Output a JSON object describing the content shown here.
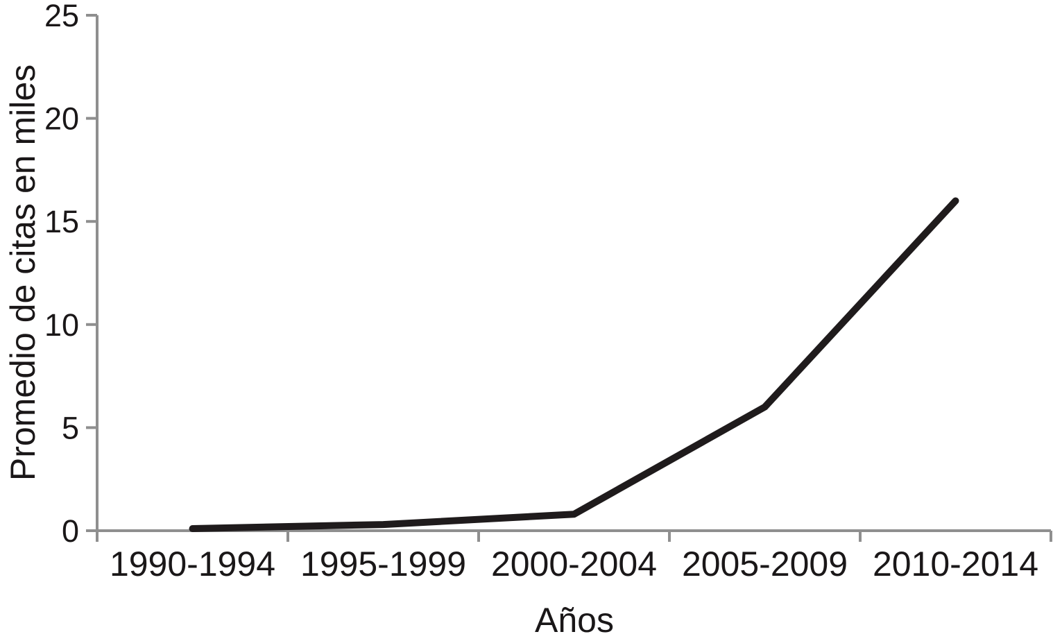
{
  "figure": {
    "background": "#ffffff"
  },
  "chart_data": {
    "type": "line",
    "title": "",
    "categories": [
      "1990-1994",
      "1995-1999",
      "2000-2004",
      "2005-2009",
      "2010-2014"
    ],
    "values": [
      0.1,
      0.3,
      0.8,
      6,
      16
    ],
    "series_name": "Promedio de citas",
    "xlabel": "Años",
    "ylabel": "Promedio de citas en miles",
    "ylim": [
      0,
      25
    ],
    "yticks": [
      0,
      5,
      10,
      15,
      20,
      25
    ],
    "grid": false,
    "legend": "none",
    "line_color": "#1f1b1c",
    "axis_color": "#8f8f8f",
    "text_color": "#1a1718"
  }
}
